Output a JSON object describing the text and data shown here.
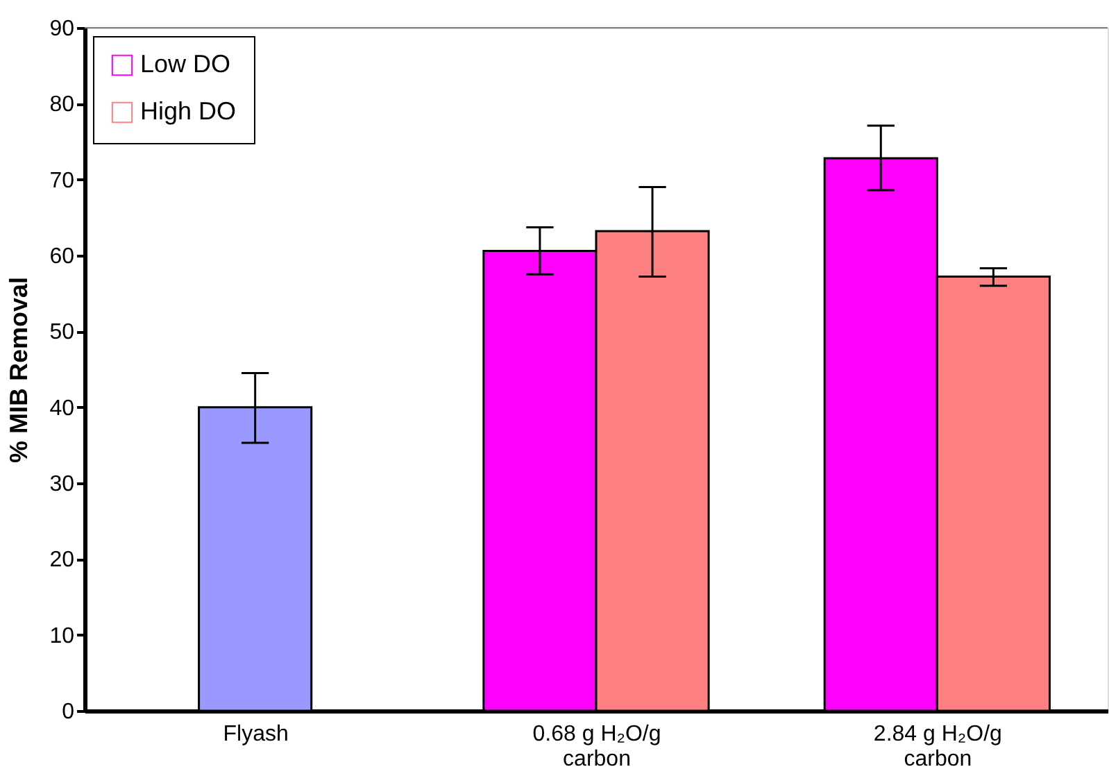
{
  "chart_data": {
    "type": "bar",
    "ylabel": "% MIB Removal",
    "categories": [
      "Flyash",
      "0.68 g H₂O/g\ncarbon",
      "2.84 g H₂O/g\ncarbon"
    ],
    "series": [
      {
        "color": "#9999ff",
        "values": [
          40,
          null,
          null
        ],
        "errors": [
          [
            35.3,
            44.5
          ],
          null,
          null
        ]
      },
      {
        "name": "Low DO",
        "color": "#ff00ff",
        "values": [
          null,
          60.6,
          72.8
        ],
        "errors": [
          null,
          [
            57.5,
            63.7
          ],
          [
            68.6,
            77.1
          ]
        ]
      },
      {
        "name": "High DO",
        "color": "#ff8080",
        "values": [
          null,
          63.2,
          57.2
        ],
        "errors": [
          null,
          [
            57.2,
            69.0
          ],
          [
            56.0,
            58.3
          ]
        ]
      }
    ],
    "ylim": [
      0,
      90
    ],
    "yticks": [
      0,
      10,
      20,
      30,
      40,
      50,
      60,
      70,
      80,
      90
    ],
    "grid": false,
    "legend": "top left"
  }
}
